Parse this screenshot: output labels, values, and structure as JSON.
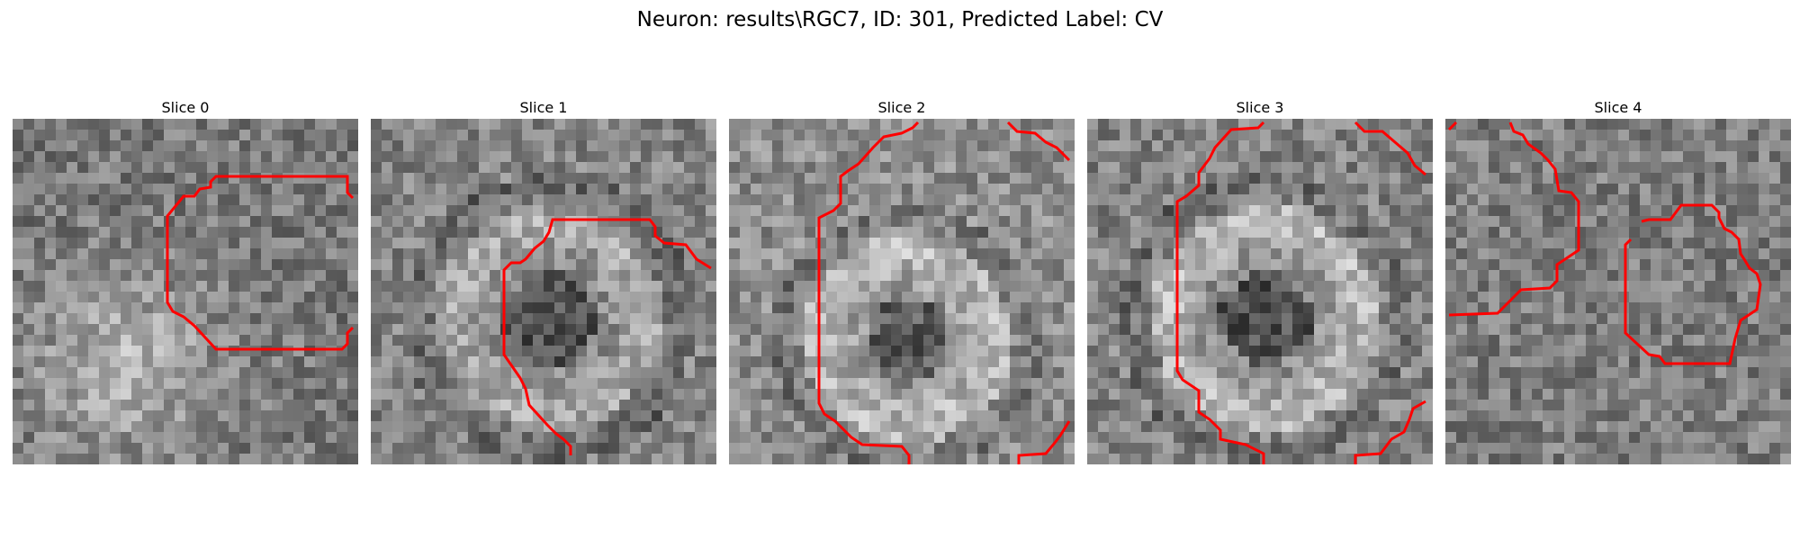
{
  "figure": {
    "title": "Neuron: results\\RGC7, ID: 301, Predicted Label: CV",
    "contour_color": "#ff0000",
    "colormap": "gray"
  },
  "slices": [
    {
      "title": "Slice 0"
    },
    {
      "title": "Slice 1"
    },
    {
      "title": "Slice 2"
    },
    {
      "title": "Slice 3"
    },
    {
      "title": "Slice 4"
    }
  ]
}
